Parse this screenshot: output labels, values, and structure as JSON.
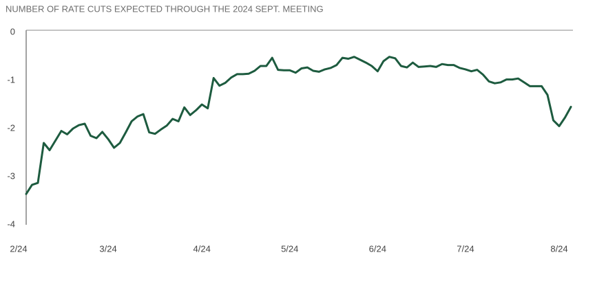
{
  "chart_data": {
    "type": "line",
    "title": "NUMBER OF RATE CUTS EXPECTED THROUGH THE 2024 SEPT. MEETING",
    "color": "#1d5b3f",
    "grid": false,
    "ylim": [
      -4,
      0
    ],
    "yticks": [
      0,
      -1,
      -2,
      -3,
      -4
    ],
    "categories": [
      "2/24",
      null,
      null,
      null,
      null,
      null,
      null,
      null,
      null,
      null,
      null,
      null,
      null,
      null,
      "3/24",
      null,
      null,
      null,
      null,
      null,
      null,
      null,
      null,
      null,
      null,
      null,
      null,
      null,
      null,
      null,
      "4/24",
      null,
      null,
      null,
      null,
      null,
      null,
      null,
      null,
      null,
      null,
      null,
      null,
      null,
      null,
      "5/24",
      null,
      null,
      null,
      null,
      null,
      null,
      null,
      null,
      null,
      null,
      null,
      null,
      null,
      null,
      "6/24",
      null,
      null,
      null,
      null,
      null,
      null,
      null,
      null,
      null,
      null,
      null,
      null,
      null,
      null,
      "7/24",
      null,
      null,
      null,
      null,
      null,
      null,
      null,
      null,
      null,
      null,
      null,
      null,
      null,
      null,
      null,
      "8/24",
      null,
      null
    ],
    "values": [
      -3.36,
      -3.17,
      -3.13,
      -2.3,
      -2.45,
      -2.25,
      -2.05,
      -2.12,
      -2.0,
      -1.93,
      -1.9,
      -2.15,
      -2.2,
      -2.07,
      -2.22,
      -2.4,
      -2.3,
      -2.08,
      -1.85,
      -1.75,
      -1.7,
      -2.08,
      -2.11,
      -2.02,
      -1.94,
      -1.8,
      -1.85,
      -1.56,
      -1.72,
      -1.62,
      -1.5,
      -1.58,
      -0.95,
      -1.11,
      -1.05,
      -0.94,
      -0.87,
      -0.87,
      -0.86,
      -0.8,
      -0.7,
      -0.7,
      -0.53,
      -0.78,
      -0.79,
      -0.79,
      -0.84,
      -0.75,
      -0.73,
      -0.8,
      -0.82,
      -0.77,
      -0.74,
      -0.68,
      -0.53,
      -0.55,
      -0.51,
      -0.57,
      -0.63,
      -0.7,
      -0.81,
      -0.6,
      -0.51,
      -0.54,
      -0.7,
      -0.73,
      -0.63,
      -0.72,
      -0.71,
      -0.7,
      -0.72,
      -0.66,
      -0.68,
      -0.68,
      -0.74,
      -0.77,
      -0.81,
      -0.78,
      -0.88,
      -1.02,
      -1.06,
      -1.04,
      -0.98,
      -0.98,
      -0.96,
      -1.04,
      -1.12,
      -1.12,
      -1.12,
      -1.3,
      -1.83,
      -1.95,
      -1.77,
      -1.55
    ]
  }
}
